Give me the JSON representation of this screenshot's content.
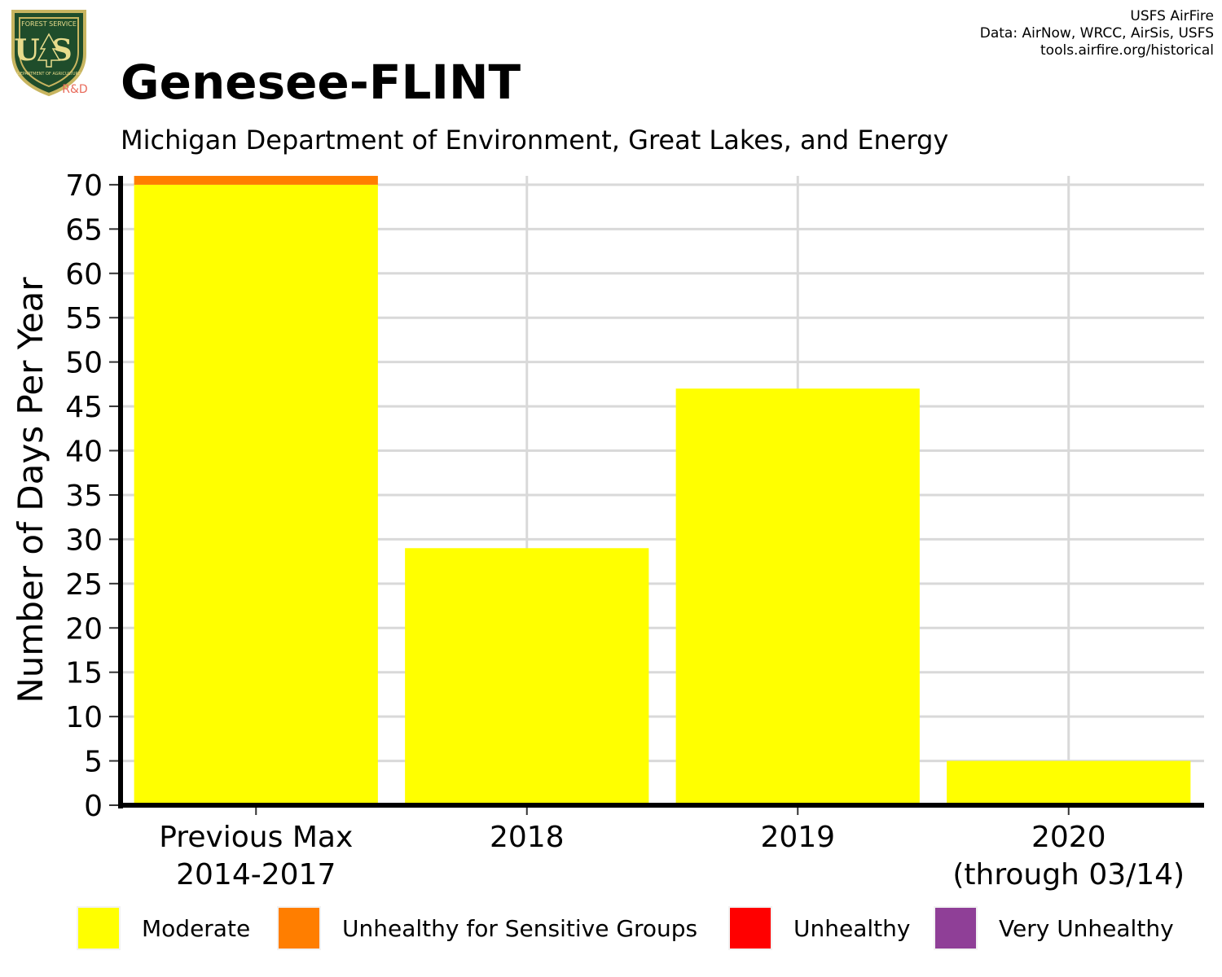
{
  "header": {
    "title": "Genesee-FLINT",
    "subtitle": "Michigan Department of Environment, Great Lakes, and Energy",
    "credits": [
      "USFS AirFire",
      "Data: AirNow, WRCC, AirSis, USFS",
      "tools.airfire.org/historical"
    ]
  },
  "logo": {
    "text_top": "FOREST SERVICE",
    "text_main": "US",
    "text_bottom": "DEPARTMENT OF AGRICULTURE",
    "tag": "R&D"
  },
  "colors": {
    "moderate": "#ffff00",
    "usg": "#ff7e00",
    "unhealthy": "#ff0000",
    "very_unhealthy": "#8f3f97",
    "grid": "#d9d9d9",
    "axis": "#000000"
  },
  "chart_data": {
    "type": "bar",
    "stacked": true,
    "title": "Genesee-FLINT",
    "subtitle": "Michigan Department of Environment, Great Lakes, and Energy",
    "ylabel": "Number of Days Per Year",
    "xlabel": "",
    "ylim": [
      0,
      71
    ],
    "yticks": [
      0,
      5,
      10,
      15,
      20,
      25,
      30,
      35,
      40,
      45,
      50,
      55,
      60,
      65,
      70
    ],
    "grid": true,
    "categories": [
      [
        "Previous Max",
        "2014-2017"
      ],
      [
        "2018"
      ],
      [
        "2019"
      ],
      [
        "2020",
        "(through 03/14)"
      ]
    ],
    "series": [
      {
        "name": "Moderate",
        "color": "#ffff00",
        "values": [
          70,
          29,
          47,
          5
        ]
      },
      {
        "name": "Unhealthy for Sensitive Groups",
        "color": "#ff7e00",
        "values": [
          1,
          0,
          0,
          0
        ]
      },
      {
        "name": "Unhealthy",
        "color": "#ff0000",
        "values": [
          0,
          0,
          0,
          0
        ]
      },
      {
        "name": "Very Unhealthy",
        "color": "#8f3f97",
        "values": [
          0,
          0,
          0,
          0
        ]
      }
    ],
    "legend_position": "bottom"
  }
}
